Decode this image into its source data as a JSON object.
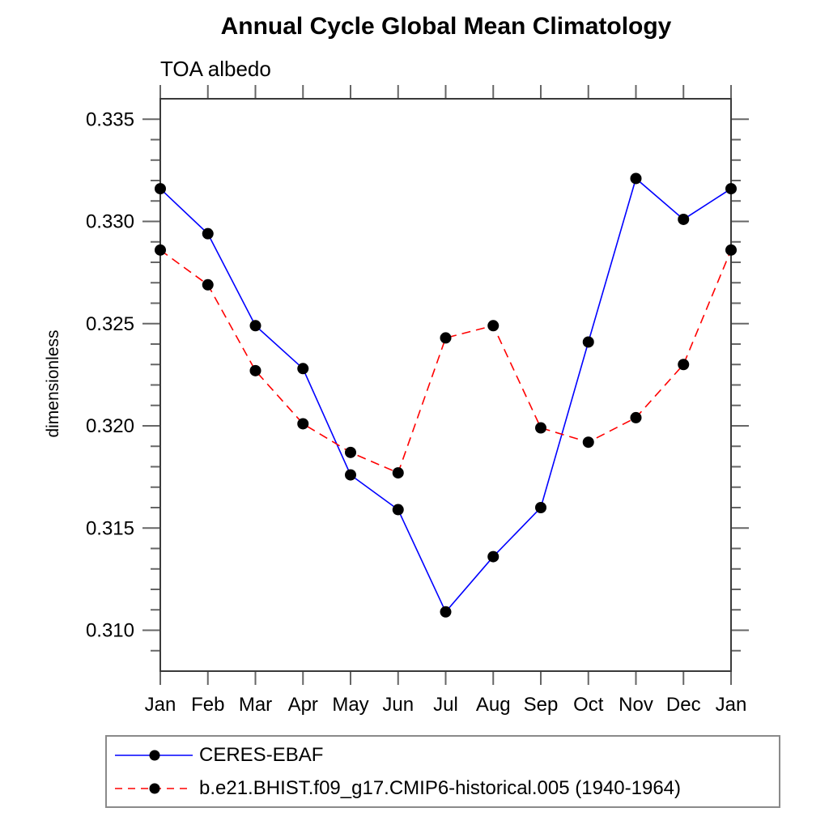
{
  "page": {
    "background_color": "#ffffff",
    "text_color": "#000000"
  },
  "header": {
    "title": "Annual Cycle Global Mean Climatology",
    "subtitle": "TOA albedo"
  },
  "chart_data": {
    "type": "line",
    "title": "Annual Cycle Global Mean Climatology",
    "subtitle": "TOA albedo",
    "xlabel": "",
    "ylabel": "dimensionless",
    "categories": [
      "Jan",
      "Feb",
      "Mar",
      "Apr",
      "May",
      "Jun",
      "Jul",
      "Aug",
      "Sep",
      "Oct",
      "Nov",
      "Dec",
      "Jan"
    ],
    "ylim": [
      0.308,
      0.336
    ],
    "y_major_ticks": [
      0.31,
      0.315,
      0.32,
      0.325,
      0.33,
      0.335
    ],
    "y_minor_step": 0.001,
    "y_tick_decimals": 3,
    "grid": false,
    "legend_position": "bottom-left-boxed",
    "series": [
      {
        "name": "CERES-EBAF",
        "color": "#0000ff",
        "line_style": "solid",
        "marker": "filled-circle",
        "marker_color": "#000000",
        "values": [
          0.3316,
          0.3294,
          0.3249,
          0.3228,
          0.3176,
          0.3159,
          0.3109,
          0.3136,
          0.316,
          0.3241,
          0.3321,
          0.3301,
          0.3316
        ]
      },
      {
        "name": "b.e21.BHIST.f09_g17.CMIP6-historical.005 (1940-1964)",
        "color": "#ff0000",
        "line_style": "dashed",
        "marker": "filled-circle",
        "marker_color": "#000000",
        "values": [
          0.3286,
          0.3269,
          0.3227,
          0.3201,
          0.3187,
          0.3177,
          0.3243,
          0.3249,
          0.3199,
          0.3192,
          0.3204,
          0.323,
          0.3286
        ]
      }
    ]
  },
  "style": {
    "frame_color": "#3a3a3a",
    "tick_color": "#666666",
    "line_width": 1.6,
    "marker_radius": 7,
    "dash_pattern": "11,7"
  }
}
